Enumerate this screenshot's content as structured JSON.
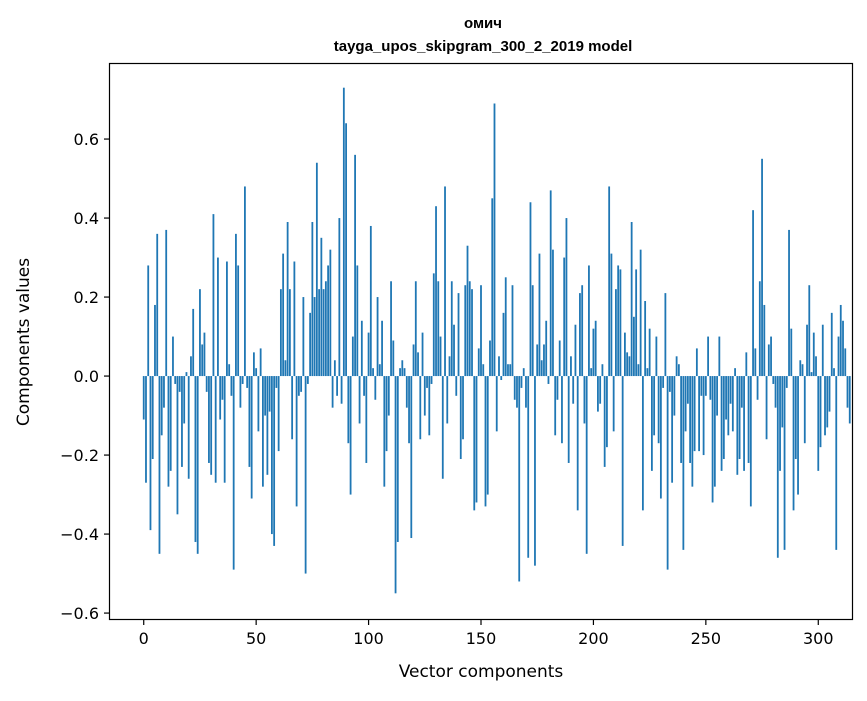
{
  "chart_data": {
    "type": "bar",
    "title_line1": "омич",
    "title_line2": "tayga_upos_skipgram_300_2_2019 model",
    "xlabel": "Vector components",
    "ylabel": "Components values",
    "xlim": [
      -15,
      315
    ],
    "ylim": [
      -0.615,
      0.79
    ],
    "x_ticks": [
      {
        "value": 0,
        "label": "0"
      },
      {
        "value": 50,
        "label": "50"
      },
      {
        "value": 100,
        "label": "100"
      },
      {
        "value": 150,
        "label": "150"
      },
      {
        "value": 200,
        "label": "200"
      },
      {
        "value": 250,
        "label": "250"
      },
      {
        "value": 300,
        "label": "300"
      }
    ],
    "y_ticks": [
      {
        "value": -0.6,
        "label": "−0.6"
      },
      {
        "value": -0.4,
        "label": "−0.4"
      },
      {
        "value": -0.2,
        "label": "−0.2"
      },
      {
        "value": 0.0,
        "label": "0.0"
      },
      {
        "value": 0.2,
        "label": "0.2"
      },
      {
        "value": 0.4,
        "label": "0.4"
      },
      {
        "value": 0.6,
        "label": "0.6"
      }
    ],
    "bar_color": "#1f77b4",
    "values": [
      -0.11,
      -0.27,
      0.28,
      -0.39,
      -0.21,
      0.18,
      0.36,
      -0.45,
      -0.15,
      -0.08,
      0.37,
      -0.28,
      -0.24,
      0.1,
      -0.02,
      -0.35,
      -0.04,
      -0.23,
      -0.12,
      0.01,
      -0.26,
      0.05,
      0.17,
      -0.42,
      -0.45,
      0.22,
      0.08,
      0.11,
      -0.04,
      -0.22,
      -0.25,
      0.41,
      -0.27,
      0.3,
      -0.11,
      -0.06,
      -0.27,
      0.29,
      0.03,
      -0.05,
      -0.49,
      0.36,
      0.28,
      -0.08,
      -0.02,
      0.48,
      -0.03,
      -0.23,
      -0.31,
      0.06,
      0.02,
      -0.14,
      0.07,
      -0.28,
      -0.1,
      -0.25,
      -0.09,
      -0.4,
      -0.43,
      -0.03,
      -0.19,
      0.22,
      0.31,
      0.04,
      0.39,
      0.22,
      -0.16,
      0.29,
      -0.33,
      -0.05,
      -0.04,
      0.2,
      -0.5,
      -0.02,
      0.16,
      0.39,
      0.2,
      0.54,
      0.22,
      0.35,
      0.22,
      0.24,
      0.28,
      0.32,
      -0.08,
      0.04,
      -0.05,
      0.4,
      -0.07,
      0.73,
      0.64,
      -0.17,
      -0.3,
      0.1,
      0.56,
      0.28,
      -0.12,
      0.14,
      -0.05,
      -0.22,
      0.11,
      0.38,
      0.02,
      -0.06,
      0.2,
      0.03,
      0.14,
      -0.28,
      -0.19,
      -0.1,
      0.24,
      0.09,
      -0.55,
      -0.42,
      0.02,
      0.04,
      0.02,
      -0.08,
      -0.17,
      -0.41,
      0.08,
      0.24,
      0.06,
      -0.16,
      0.11,
      -0.1,
      -0.03,
      -0.15,
      -0.02,
      0.26,
      0.43,
      0.24,
      0.1,
      -0.26,
      0.48,
      -0.12,
      0.05,
      0.24,
      0.13,
      -0.05,
      0.21,
      -0.21,
      -0.16,
      0.23,
      0.33,
      0.24,
      0.22,
      -0.34,
      -0.32,
      0.07,
      0.23,
      0.03,
      -0.33,
      -0.3,
      0.09,
      0.45,
      0.69,
      -0.14,
      0.05,
      -0.01,
      0.16,
      0.25,
      0.03,
      0.03,
      0.23,
      -0.06,
      -0.08,
      -0.52,
      -0.03,
      0.02,
      -0.08,
      -0.46,
      0.44,
      0.23,
      -0.48,
      0.08,
      0.31,
      0.04,
      0.08,
      0.14,
      -0.02,
      0.47,
      0.32,
      -0.15,
      -0.06,
      0.09,
      -0.17,
      0.3,
      0.4,
      -0.22,
      0.05,
      -0.07,
      0.13,
      -0.34,
      0.21,
      0.23,
      -0.12,
      -0.45,
      0.28,
      0.02,
      0.12,
      0.14,
      -0.09,
      -0.07,
      0.03,
      -0.23,
      -0.18,
      0.48,
      0.31,
      -0.14,
      0.22,
      0.28,
      0.27,
      -0.43,
      0.11,
      0.06,
      0.05,
      0.39,
      0.15,
      0.27,
      0.03,
      0.32,
      -0.34,
      0.19,
      0.02,
      0.12,
      -0.24,
      -0.15,
      0.1,
      -0.17,
      -0.31,
      -0.03,
      0.21,
      -0.49,
      -0.04,
      -0.27,
      -0.1,
      0.05,
      0.03,
      -0.22,
      -0.44,
      -0.14,
      -0.07,
      -0.22,
      -0.28,
      -0.19,
      0.07,
      -0.19,
      -0.05,
      -0.2,
      -0.05,
      0.1,
      -0.06,
      -0.32,
      -0.28,
      -0.1,
      0.1,
      -0.24,
      -0.21,
      -0.11,
      -0.15,
      -0.07,
      -0.14,
      0.02,
      -0.25,
      -0.21,
      -0.08,
      -0.24,
      0.06,
      -0.22,
      -0.33,
      0.42,
      0.07,
      -0.06,
      0.24,
      0.55,
      0.18,
      -0.16,
      0.08,
      0.1,
      -0.02,
      -0.08,
      -0.46,
      -0.24,
      -0.13,
      -0.44,
      -0.03,
      0.37,
      0.12,
      -0.34,
      -0.21,
      -0.3,
      0.04,
      0.03,
      -0.17,
      0.13,
      0.23,
      0.01,
      0.11,
      0.05,
      -0.24,
      -0.18,
      0.13,
      -0.15,
      -0.13,
      -0.09,
      0.16,
      0.02,
      -0.44,
      0.1,
      0.18,
      0.14,
      0.07,
      -0.08,
      -0.12
    ]
  }
}
